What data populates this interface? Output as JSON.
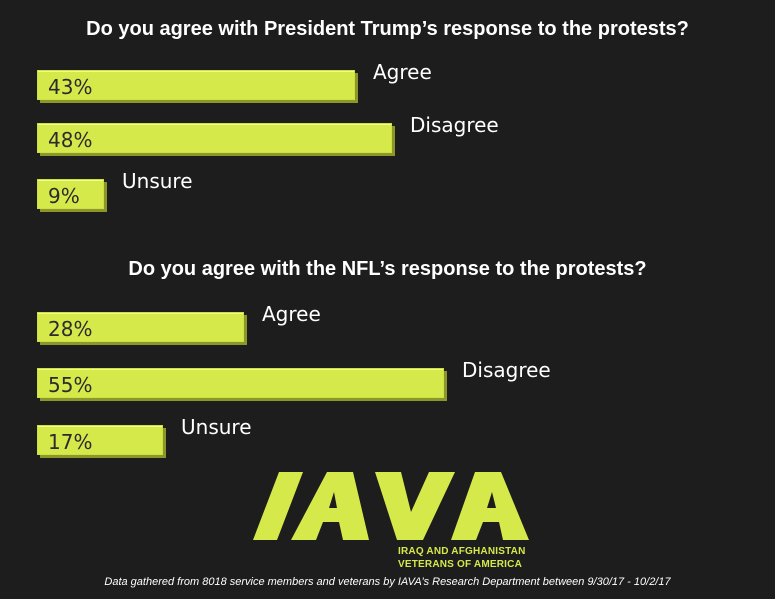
{
  "chart_data": [
    {
      "type": "bar",
      "title": "Do you agree with President Trump’s response to the protests?",
      "categories": [
        "Agree",
        "Disagree",
        "Unsure"
      ],
      "values": [
        43,
        48,
        9
      ],
      "value_labels": [
        "43%",
        "48%",
        "9%"
      ],
      "unit": "%",
      "orientation": "horizontal",
      "color": "#d6e94a"
    },
    {
      "type": "bar",
      "title": "Do you agree with the NFL’s response to the protests?",
      "categories": [
        "Agree",
        "Disagree",
        "Unsure"
      ],
      "values": [
        28,
        55,
        17
      ],
      "value_labels": [
        "28%",
        "55%",
        "17%"
      ],
      "unit": "%",
      "orientation": "horizontal",
      "color": "#d6e94a"
    }
  ],
  "logo": {
    "mark": "IAVA",
    "line1": "IRAQ AND AFGHANISTAN",
    "line2": "VETERANS OF AMERICA"
  },
  "footnote": "Data gathered from 8018 service members and veterans by IAVA’s Research Department between 9/30/17 - 10/2/17",
  "colors": {
    "background": "#1d1d1d",
    "bar": "#d6e94a",
    "text": "#ffffff"
  }
}
